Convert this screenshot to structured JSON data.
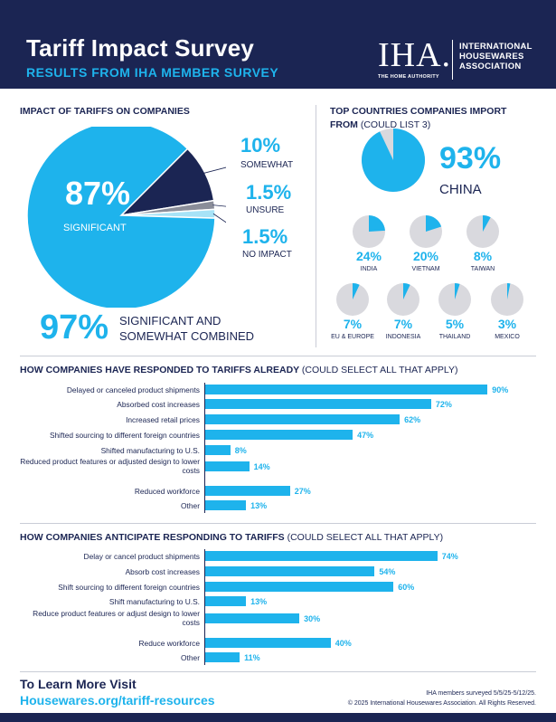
{
  "header": {
    "title": "Tariff Impact Survey",
    "subtitle": "RESULTS FROM IHA MEMBER SURVEY",
    "logo_mark": "IHA.",
    "logo_tagline": "THE HOME AUTHORITY",
    "org_line1": "INTERNATIONAL",
    "org_line2": "HOUSEWARES",
    "org_line3": "ASSOCIATION"
  },
  "colors": {
    "navy": "#1b2553",
    "cyan": "#1eb3ec",
    "light": "#a7e3f7",
    "gray": "#d9d9de",
    "mid": "#8a8d99"
  },
  "chart_data": [
    {
      "type": "pie",
      "title": "IMPACT OF TARIFFS ON COMPANIES",
      "categories": [
        "SIGNIFICANT",
        "SOMEWHAT",
        "UNSURE",
        "NO IMPACT"
      ],
      "values": [
        87,
        10,
        1.5,
        1.5
      ],
      "pct_labels": [
        "87%",
        "10%",
        "1.5%",
        "1.5%"
      ],
      "summary_value": "97%",
      "summary_line1": "SIGNIFICANT AND",
      "summary_line2": "SOMEWHAT COMBINED"
    },
    {
      "type": "pie",
      "title": "TOP COUNTRIES COMPANIES IMPORT",
      "title_line2": "FROM",
      "title_note": "(COULD LIST 3)",
      "categories": [
        "CHINA",
        "INDIA",
        "VIETNAM",
        "TAIWAN",
        "EU & EUROPE",
        "INDONESIA",
        "THAILAND",
        "MEXICO"
      ],
      "values": [
        93,
        24,
        20,
        8,
        7,
        7,
        5,
        3
      ],
      "pct_labels": [
        "93%",
        "24%",
        "20%",
        "8%",
        "7%",
        "7%",
        "5%",
        "3%"
      ]
    },
    {
      "type": "bar",
      "title": "HOW COMPANIES HAVE RESPONDED TO TARIFFS ALREADY",
      "title_note": "(COULD SELECT ALL THAT APPLY)",
      "categories": [
        "Delayed or canceled product shipments",
        "Absorbed cost increases",
        "Increased retail prices",
        "Shifted sourcing to different foreign countries",
        "Shifted manufacturing to U.S.",
        "Reduced product features or adjusted design to lower costs",
        "Reduced workforce",
        "Other"
      ],
      "values": [
        90,
        72,
        62,
        47,
        8,
        14,
        27,
        13
      ],
      "value_labels": [
        "90%",
        "72%",
        "62%",
        "47%",
        "8%",
        "14%",
        "27%",
        "13%"
      ]
    },
    {
      "type": "bar",
      "title": "HOW COMPANIES ANTICIPATE RESPONDING TO TARIFFS",
      "title_note": "(COULD SELECT ALL THAT APPLY)",
      "categories": [
        "Delay or cancel product shipments",
        "Absorb cost increases",
        "Shift sourcing to different foreign countries",
        "Shift manufacturing to U.S.",
        "Reduce product features or adjust design to lower costs",
        "Reduce workforce",
        "Other"
      ],
      "values": [
        74,
        54,
        60,
        13,
        30,
        40,
        11
      ],
      "value_labels": [
        "74%",
        "54%",
        "60%",
        "13%",
        "30%",
        "40%",
        "11%"
      ]
    }
  ],
  "footer": {
    "title": "To Learn More Visit",
    "link": "Housewares.org/tariff-resources",
    "note1": "IHA members surveyed 5/5/25-5/12/25.",
    "note2": "© 2025 International Housewares Association. All Rights Reserved."
  }
}
